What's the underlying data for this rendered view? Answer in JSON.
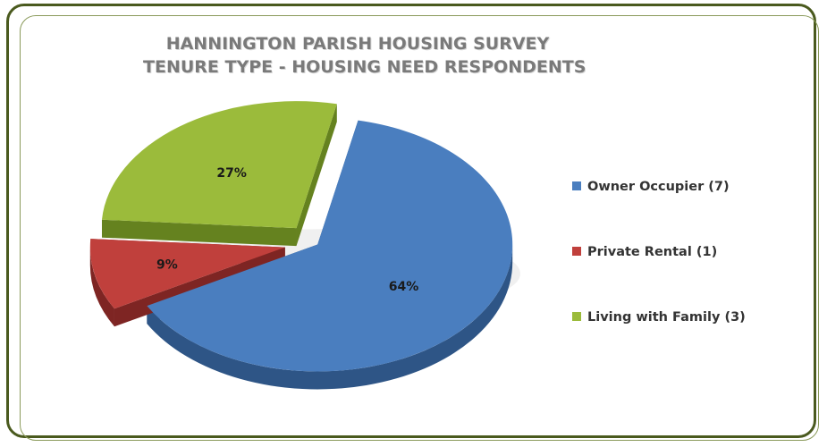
{
  "chart_data": {
    "type": "pie",
    "title": "HANNINGTON PARISH HOUSING SURVEY",
    "subtitle": "TENURE TYPE - HOUSING NEED RESPONDENTS",
    "categories": [
      "Owner Occupier (7)",
      "Private Rental (1)",
      "Living with Family (3)"
    ],
    "values": [
      7,
      1,
      3
    ],
    "percent_labels": [
      "64%",
      "9%",
      "27%"
    ],
    "colors": [
      "#4a7ebf",
      "#c0403c",
      "#9bbb3b"
    ],
    "side_colors": [
      "#2e5586",
      "#7e2523",
      "#65821f"
    ],
    "legend_position": "right",
    "exploded": true,
    "style": "3d"
  }
}
